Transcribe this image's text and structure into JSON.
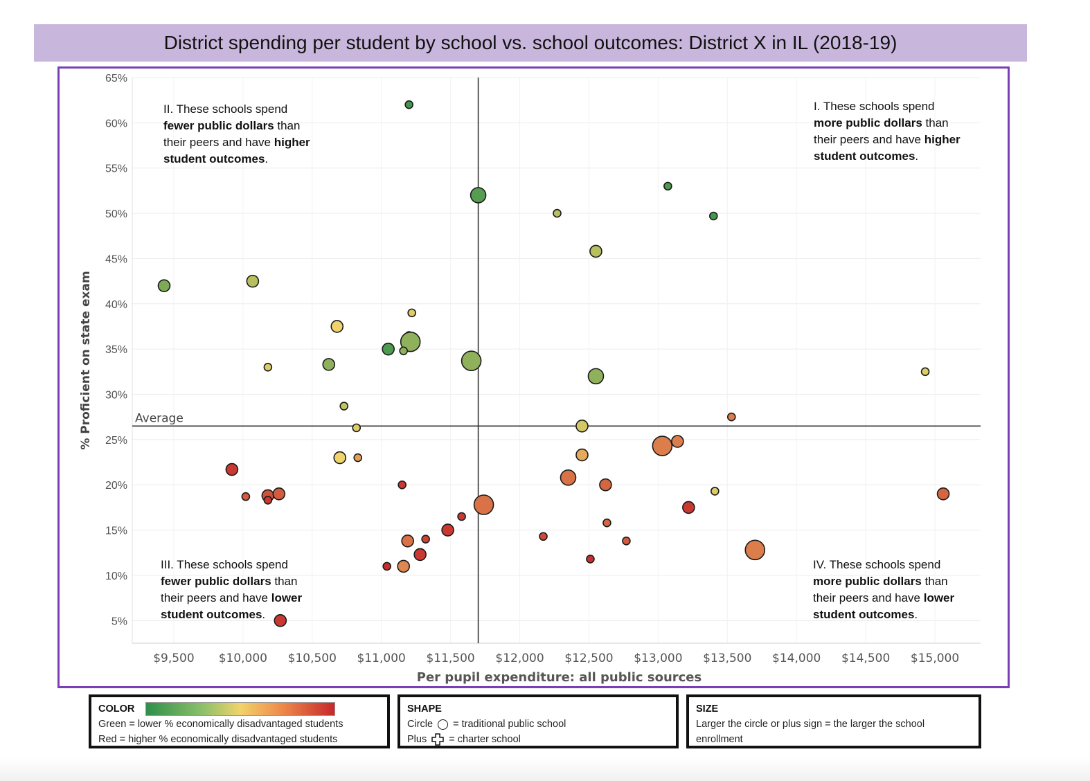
{
  "title": "District spending per student by school vs. school outcomes: District X in IL (2018-19)",
  "chart_data": {
    "type": "scatter",
    "xlabel": "Per pupil expenditure: all public sources",
    "ylabel": "% Proficient on state exam",
    "x_ticks": [
      "$9,500",
      "$10,000",
      "$10,500",
      "$11,000",
      "$11,500",
      "$12,000",
      "$12,500",
      "$13,000",
      "$13,500",
      "$14,000",
      "$14,500",
      "$15,000"
    ],
    "y_ticks": [
      "5%",
      "10%",
      "15%",
      "20%",
      "25%",
      "30%",
      "35%",
      "40%",
      "45%",
      "50%",
      "55%",
      "60%",
      "65%"
    ],
    "xlim": [
      9200,
      15330
    ],
    "ylim": [
      2.5,
      65
    ],
    "grid": true,
    "average_label": "Average",
    "average_x": 11700,
    "average_y": 26.5,
    "color_scale": {
      "low": "#2f8f4a",
      "mid": "#f1d36b",
      "high": "#c6282b"
    },
    "color_scale_note": "0 = lower % economically disadvantaged, 1 = higher %",
    "points": [
      {
        "x": 11200,
        "y": 62.0,
        "size": 1,
        "color": 0.05
      },
      {
        "x": 11700,
        "y": 52.0,
        "size": 3,
        "color": 0.1
      },
      {
        "x": 13070,
        "y": 53.0,
        "size": 1,
        "color": 0.08
      },
      {
        "x": 13400,
        "y": 49.7,
        "size": 1,
        "color": 0.06
      },
      {
        "x": 12270,
        "y": 50.0,
        "size": 1,
        "color": 0.35
      },
      {
        "x": 12550,
        "y": 45.8,
        "size": 2,
        "color": 0.35
      },
      {
        "x": 9430,
        "y": 42.0,
        "size": 2,
        "color": 0.2
      },
      {
        "x": 10070,
        "y": 42.5,
        "size": 2,
        "color": 0.35
      },
      {
        "x": 11220,
        "y": 39.0,
        "size": 1,
        "color": 0.45
      },
      {
        "x": 10680,
        "y": 37.5,
        "size": 2,
        "color": 0.5
      },
      {
        "x": 11200,
        "y": 36.5,
        "size": 1,
        "color": 0.6
      },
      {
        "x": 11210,
        "y": 35.8,
        "size": 4,
        "color": 0.25
      },
      {
        "x": 11050,
        "y": 35.0,
        "size": 2,
        "color": 0.08
      },
      {
        "x": 11160,
        "y": 34.8,
        "size": 1,
        "color": 0.25
      },
      {
        "x": 11650,
        "y": 33.7,
        "size": 4,
        "color": 0.25
      },
      {
        "x": 10620,
        "y": 33.3,
        "size": 2,
        "color": 0.25
      },
      {
        "x": 10180,
        "y": 33.0,
        "size": 1,
        "color": 0.45
      },
      {
        "x": 12550,
        "y": 32.0,
        "size": 3,
        "color": 0.25
      },
      {
        "x": 14930,
        "y": 32.5,
        "size": 1,
        "color": 0.45
      },
      {
        "x": 10730,
        "y": 28.7,
        "size": 1,
        "color": 0.38
      },
      {
        "x": 10820,
        "y": 26.3,
        "size": 1,
        "color": 0.45
      },
      {
        "x": 12450,
        "y": 26.5,
        "size": 2,
        "color": 0.42
      },
      {
        "x": 13530,
        "y": 27.5,
        "size": 1,
        "color": 0.75
      },
      {
        "x": 10700,
        "y": 23.0,
        "size": 2,
        "color": 0.5
      },
      {
        "x": 10830,
        "y": 23.0,
        "size": 1,
        "color": 0.65
      },
      {
        "x": 12450,
        "y": 23.3,
        "size": 2,
        "color": 0.62
      },
      {
        "x": 13030,
        "y": 24.3,
        "size": 4,
        "color": 0.75
      },
      {
        "x": 13140,
        "y": 24.8,
        "size": 2,
        "color": 0.75
      },
      {
        "x": 9920,
        "y": 21.7,
        "size": 2,
        "color": 0.95
      },
      {
        "x": 11150,
        "y": 20.0,
        "size": 1,
        "color": 0.95
      },
      {
        "x": 12350,
        "y": 20.8,
        "size": 3,
        "color": 0.78
      },
      {
        "x": 12620,
        "y": 20.0,
        "size": 2,
        "color": 0.82
      },
      {
        "x": 10020,
        "y": 18.7,
        "size": 1,
        "color": 0.85
      },
      {
        "x": 10180,
        "y": 18.8,
        "size": 2,
        "color": 0.88
      },
      {
        "x": 10180,
        "y": 18.3,
        "size": 1,
        "color": 0.95
      },
      {
        "x": 10260,
        "y": 19.0,
        "size": 2,
        "color": 0.85
      },
      {
        "x": 13410,
        "y": 19.3,
        "size": 1,
        "color": 0.45
      },
      {
        "x": 15060,
        "y": 19.0,
        "size": 2,
        "color": 0.82
      },
      {
        "x": 11740,
        "y": 17.8,
        "size": 4,
        "color": 0.78
      },
      {
        "x": 13220,
        "y": 17.5,
        "size": 2,
        "color": 0.95
      },
      {
        "x": 11580,
        "y": 16.5,
        "size": 1,
        "color": 0.95
      },
      {
        "x": 11480,
        "y": 15.0,
        "size": 2,
        "color": 0.95
      },
      {
        "x": 12630,
        "y": 15.8,
        "size": 1,
        "color": 0.82
      },
      {
        "x": 12170,
        "y": 14.3,
        "size": 1,
        "color": 0.9
      },
      {
        "x": 11190,
        "y": 13.8,
        "size": 2,
        "color": 0.78
      },
      {
        "x": 11320,
        "y": 14.0,
        "size": 1,
        "color": 0.92
      },
      {
        "x": 12770,
        "y": 13.8,
        "size": 1,
        "color": 0.85
      },
      {
        "x": 13700,
        "y": 12.8,
        "size": 4,
        "color": 0.75
      },
      {
        "x": 11280,
        "y": 12.3,
        "size": 2,
        "color": 0.95
      },
      {
        "x": 12510,
        "y": 11.8,
        "size": 1,
        "color": 0.98
      },
      {
        "x": 11040,
        "y": 11.0,
        "size": 1,
        "color": 0.98
      },
      {
        "x": 11160,
        "y": 11.0,
        "size": 2,
        "color": 0.72
      },
      {
        "x": 10270,
        "y": 5.0,
        "size": 2,
        "color": 0.95
      }
    ],
    "annotations": {
      "q2": [
        [
          {
            "t": "II. These schools spend",
            "b": false
          }
        ],
        [
          {
            "t": "fewer public dollars",
            "b": true
          },
          {
            "t": " than",
            "b": false
          }
        ],
        [
          {
            "t": "their peers and have ",
            "b": false
          },
          {
            "t": "higher",
            "b": true
          }
        ],
        [
          {
            "t": "student outcomes",
            "b": true
          },
          {
            "t": ".",
            "b": false
          }
        ]
      ],
      "q1": [
        [
          {
            "t": "I. These schools spend",
            "b": false
          }
        ],
        [
          {
            "t": "more public dollars",
            "b": true
          },
          {
            "t": " than",
            "b": false
          }
        ],
        [
          {
            "t": "their peers and have ",
            "b": false
          },
          {
            "t": "higher",
            "b": true
          }
        ],
        [
          {
            "t": "student outcomes",
            "b": true
          },
          {
            "t": ".",
            "b": false
          }
        ]
      ],
      "q3": [
        [
          {
            "t": "III. These schools spend",
            "b": false
          }
        ],
        [
          {
            "t": "fewer public dollars",
            "b": true
          },
          {
            "t": " than",
            "b": false
          }
        ],
        [
          {
            "t": "their peers and have ",
            "b": false
          },
          {
            "t": "lower",
            "b": true
          }
        ],
        [
          {
            "t": "student outcomes",
            "b": true
          },
          {
            "t": ".",
            "b": false
          }
        ]
      ],
      "q4": [
        [
          {
            "t": "IV. These schools spend",
            "b": false
          }
        ],
        [
          {
            "t": "more public dollars",
            "b": true
          },
          {
            "t": " than",
            "b": false
          }
        ],
        [
          {
            "t": "their peers and have ",
            "b": false
          },
          {
            "t": "lower",
            "b": true
          }
        ],
        [
          {
            "t": "student outcomes",
            "b": true
          },
          {
            "t": ".",
            "b": false
          }
        ]
      ]
    }
  },
  "legend": {
    "color": {
      "title": "COLOR",
      "line1": "Green = lower % economically disadvantaged students",
      "line2": "Red = higher % economically disadvantaged students"
    },
    "shape": {
      "title": "SHAPE",
      "circle_label": "Circle",
      "circle_text": "= traditional public school",
      "plus_label": "Plus",
      "plus_text": "= charter school"
    },
    "size": {
      "title": "SIZE",
      "line1": "Larger the circle or plus sign = the larger the school",
      "line2": "enrollment"
    }
  }
}
